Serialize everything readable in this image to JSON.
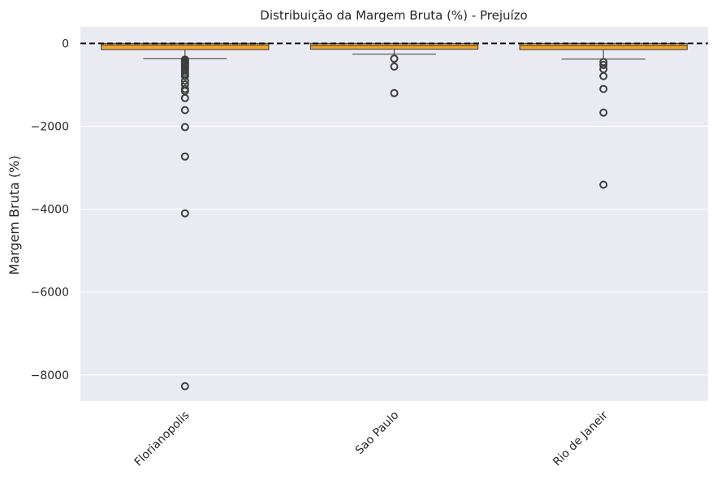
{
  "chart_data": {
    "type": "box",
    "title": "Distribuição da Margem Bruta (%) - Prejuízo",
    "xlabel": "",
    "ylabel": "Margem Bruta (%)",
    "categories": [
      "Florianopolis",
      "Sao Paulo",
      "Rio de Janeir"
    ],
    "ylim": [
      -8630,
      400
    ],
    "yticks": [
      0,
      -2000,
      -4000,
      -6000,
      -8000
    ],
    "ytick_labels": [
      "0",
      "−2000",
      "−4000",
      "−6000",
      "−8000"
    ],
    "grid": true,
    "reference_line": {
      "y": 0,
      "style": "dashed",
      "color": "#000000"
    },
    "box_color": "#f0a52a",
    "background_color": "#eaeaf2",
    "boxes": [
      {
        "category": "Florianopolis",
        "q1": -150,
        "median": -40,
        "q3": 0,
        "whisker_low": -370,
        "whisker_high": 0,
        "outliers": [
          -390,
          -420,
          -450,
          -480,
          -510,
          -540,
          -570,
          -600,
          -640,
          -690,
          -740,
          -790,
          -900,
          -990,
          -1100,
          -1150,
          -1320,
          -1610,
          -2020,
          -2730,
          -4100,
          -8270
        ]
      },
      {
        "category": "Sao Paulo",
        "q1": -140,
        "median": -50,
        "q3": 0,
        "whisker_low": -260,
        "whisker_high": 0,
        "outliers": [
          -370,
          -560,
          -1200
        ]
      },
      {
        "category": "Rio de Janeir",
        "q1": -150,
        "median": -50,
        "q3": 0,
        "whisker_low": -380,
        "whisker_high": 0,
        "outliers": [
          -450,
          -520,
          -620,
          -790,
          -1100,
          -1670,
          -3410
        ]
      }
    ]
  }
}
